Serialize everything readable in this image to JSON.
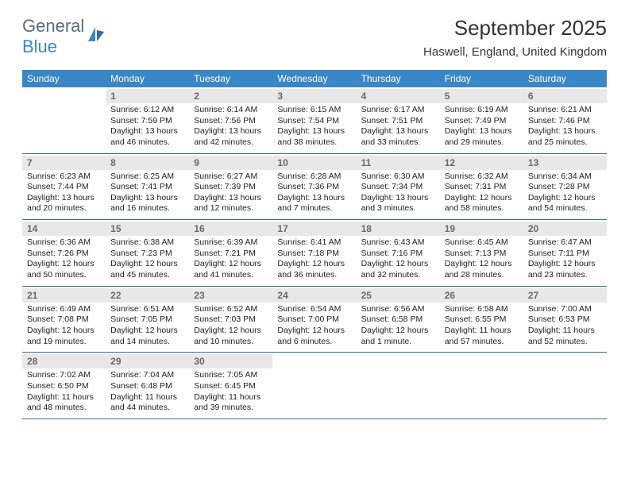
{
  "logo": {
    "text1": "General",
    "text2": "Blue"
  },
  "title": "September 2025",
  "location": "Haswell, England, United Kingdom",
  "dow": [
    "Sunday",
    "Monday",
    "Tuesday",
    "Wednesday",
    "Thursday",
    "Friday",
    "Saturday"
  ],
  "header_bg": "#3a87c7",
  "daynum_bg": "#e8e8e8",
  "border_color": "#3a6a99",
  "text_color": "#222222",
  "weeks": [
    [
      null,
      {
        "n": "1",
        "sr": "Sunrise: 6:12 AM",
        "ss": "Sunset: 7:59 PM",
        "dl": "Daylight: 13 hours and 46 minutes."
      },
      {
        "n": "2",
        "sr": "Sunrise: 6:14 AM",
        "ss": "Sunset: 7:56 PM",
        "dl": "Daylight: 13 hours and 42 minutes."
      },
      {
        "n": "3",
        "sr": "Sunrise: 6:15 AM",
        "ss": "Sunset: 7:54 PM",
        "dl": "Daylight: 13 hours and 38 minutes."
      },
      {
        "n": "4",
        "sr": "Sunrise: 6:17 AM",
        "ss": "Sunset: 7:51 PM",
        "dl": "Daylight: 13 hours and 33 minutes."
      },
      {
        "n": "5",
        "sr": "Sunrise: 6:19 AM",
        "ss": "Sunset: 7:49 PM",
        "dl": "Daylight: 13 hours and 29 minutes."
      },
      {
        "n": "6",
        "sr": "Sunrise: 6:21 AM",
        "ss": "Sunset: 7:46 PM",
        "dl": "Daylight: 13 hours and 25 minutes."
      }
    ],
    [
      {
        "n": "7",
        "sr": "Sunrise: 6:23 AM",
        "ss": "Sunset: 7:44 PM",
        "dl": "Daylight: 13 hours and 20 minutes."
      },
      {
        "n": "8",
        "sr": "Sunrise: 6:25 AM",
        "ss": "Sunset: 7:41 PM",
        "dl": "Daylight: 13 hours and 16 minutes."
      },
      {
        "n": "9",
        "sr": "Sunrise: 6:27 AM",
        "ss": "Sunset: 7:39 PM",
        "dl": "Daylight: 13 hours and 12 minutes."
      },
      {
        "n": "10",
        "sr": "Sunrise: 6:28 AM",
        "ss": "Sunset: 7:36 PM",
        "dl": "Daylight: 13 hours and 7 minutes."
      },
      {
        "n": "11",
        "sr": "Sunrise: 6:30 AM",
        "ss": "Sunset: 7:34 PM",
        "dl": "Daylight: 13 hours and 3 minutes."
      },
      {
        "n": "12",
        "sr": "Sunrise: 6:32 AM",
        "ss": "Sunset: 7:31 PM",
        "dl": "Daylight: 12 hours and 58 minutes."
      },
      {
        "n": "13",
        "sr": "Sunrise: 6:34 AM",
        "ss": "Sunset: 7:28 PM",
        "dl": "Daylight: 12 hours and 54 minutes."
      }
    ],
    [
      {
        "n": "14",
        "sr": "Sunrise: 6:36 AM",
        "ss": "Sunset: 7:26 PM",
        "dl": "Daylight: 12 hours and 50 minutes."
      },
      {
        "n": "15",
        "sr": "Sunrise: 6:38 AM",
        "ss": "Sunset: 7:23 PM",
        "dl": "Daylight: 12 hours and 45 minutes."
      },
      {
        "n": "16",
        "sr": "Sunrise: 6:39 AM",
        "ss": "Sunset: 7:21 PM",
        "dl": "Daylight: 12 hours and 41 minutes."
      },
      {
        "n": "17",
        "sr": "Sunrise: 6:41 AM",
        "ss": "Sunset: 7:18 PM",
        "dl": "Daylight: 12 hours and 36 minutes."
      },
      {
        "n": "18",
        "sr": "Sunrise: 6:43 AM",
        "ss": "Sunset: 7:16 PM",
        "dl": "Daylight: 12 hours and 32 minutes."
      },
      {
        "n": "19",
        "sr": "Sunrise: 6:45 AM",
        "ss": "Sunset: 7:13 PM",
        "dl": "Daylight: 12 hours and 28 minutes."
      },
      {
        "n": "20",
        "sr": "Sunrise: 6:47 AM",
        "ss": "Sunset: 7:11 PM",
        "dl": "Daylight: 12 hours and 23 minutes."
      }
    ],
    [
      {
        "n": "21",
        "sr": "Sunrise: 6:49 AM",
        "ss": "Sunset: 7:08 PM",
        "dl": "Daylight: 12 hours and 19 minutes."
      },
      {
        "n": "22",
        "sr": "Sunrise: 6:51 AM",
        "ss": "Sunset: 7:05 PM",
        "dl": "Daylight: 12 hours and 14 minutes."
      },
      {
        "n": "23",
        "sr": "Sunrise: 6:52 AM",
        "ss": "Sunset: 7:03 PM",
        "dl": "Daylight: 12 hours and 10 minutes."
      },
      {
        "n": "24",
        "sr": "Sunrise: 6:54 AM",
        "ss": "Sunset: 7:00 PM",
        "dl": "Daylight: 12 hours and 6 minutes."
      },
      {
        "n": "25",
        "sr": "Sunrise: 6:56 AM",
        "ss": "Sunset: 6:58 PM",
        "dl": "Daylight: 12 hours and 1 minute."
      },
      {
        "n": "26",
        "sr": "Sunrise: 6:58 AM",
        "ss": "Sunset: 6:55 PM",
        "dl": "Daylight: 11 hours and 57 minutes."
      },
      {
        "n": "27",
        "sr": "Sunrise: 7:00 AM",
        "ss": "Sunset: 6:53 PM",
        "dl": "Daylight: 11 hours and 52 minutes."
      }
    ],
    [
      {
        "n": "28",
        "sr": "Sunrise: 7:02 AM",
        "ss": "Sunset: 6:50 PM",
        "dl": "Daylight: 11 hours and 48 minutes."
      },
      {
        "n": "29",
        "sr": "Sunrise: 7:04 AM",
        "ss": "Sunset: 6:48 PM",
        "dl": "Daylight: 11 hours and 44 minutes."
      },
      {
        "n": "30",
        "sr": "Sunrise: 7:05 AM",
        "ss": "Sunset: 6:45 PM",
        "dl": "Daylight: 11 hours and 39 minutes."
      },
      null,
      null,
      null,
      null
    ]
  ]
}
